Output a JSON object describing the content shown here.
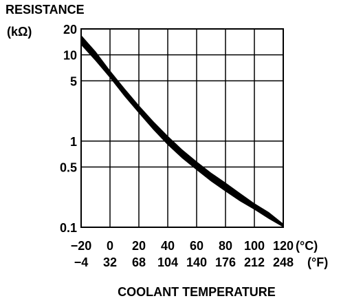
{
  "chart_data": {
    "type": "area",
    "title_lines": [
      "RESISTANCE",
      "(kΩ)"
    ],
    "xlabel": "COOLANT TEMPERATURE",
    "x_unit_primary": "(°C)",
    "x_unit_secondary": "(°F)",
    "x_primary_ticks": [
      "−20",
      "0",
      "20",
      "40",
      "60",
      "80",
      "100",
      "120"
    ],
    "x_secondary_ticks": [
      "−4",
      "32",
      "68",
      "104",
      "140",
      "176",
      "212",
      "248"
    ],
    "xlim": [
      -20,
      120
    ],
    "y_scale": "log",
    "ylim": [
      0.1,
      20
    ],
    "y_ticks": [
      0.1,
      0.5,
      1,
      5,
      10,
      20
    ],
    "y_tick_labels": [
      "0.1",
      "0.5",
      "1",
      "5",
      "10",
      "20"
    ],
    "grid": true,
    "series": [
      {
        "x": [
          -20,
          -10,
          0,
          10,
          20,
          30,
          40,
          50,
          60,
          70,
          80,
          90,
          100,
          110,
          120
        ],
        "y_upper": [
          17,
          11,
          6.6,
          4.1,
          2.6,
          1.7,
          1.15,
          0.8,
          0.58,
          0.43,
          0.33,
          0.25,
          0.19,
          0.15,
          0.11
        ],
        "y_lower": [
          13,
          8.5,
          5.4,
          3.3,
          2.1,
          1.35,
          0.9,
          0.63,
          0.46,
          0.34,
          0.26,
          0.2,
          0.16,
          0.125,
          0.1
        ],
        "color": "#000000"
      }
    ]
  }
}
